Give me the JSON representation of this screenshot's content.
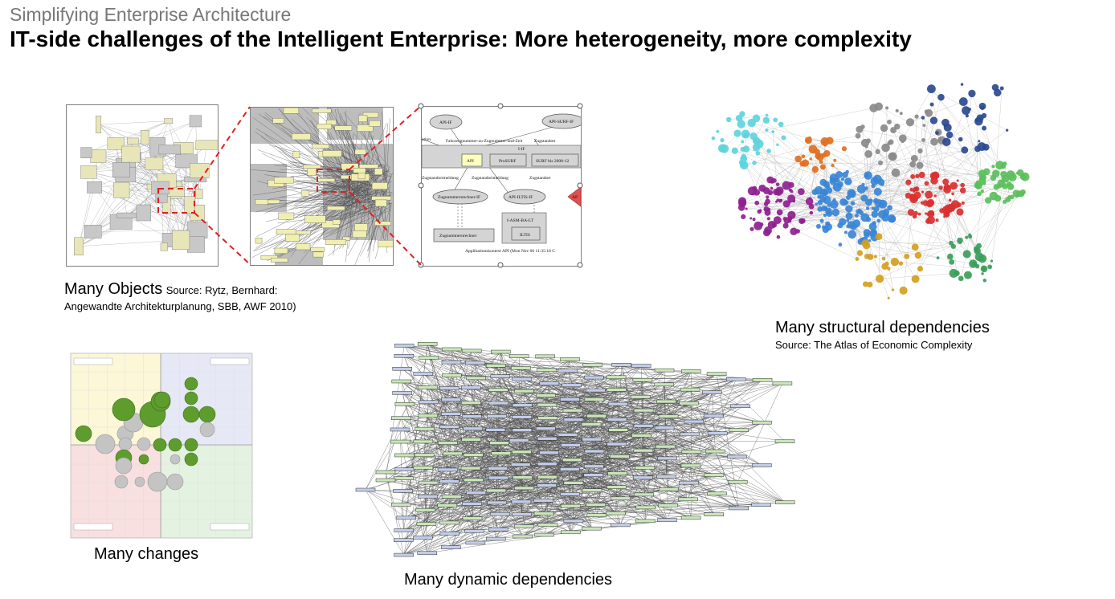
{
  "slide": {
    "subtitle": "Simplifying Enterprise Architecture",
    "title": "IT-side challenges of the Intelligent Enterprise: More heterogeneity, more complexity"
  },
  "objects": {
    "caption": "Many Objects",
    "source_line1": "Source: Rytz, Bernhard:",
    "source_line2": "Angewandte Architekturplanung, SBB, AWF 2010)",
    "zoom_nodes": [
      {
        "label": "API-IF"
      },
      {
        "label": "API-SURF-IF"
      },
      {
        "label": "Fahrzeugnummer-zu-Zugnummer-und-Zeit"
      },
      {
        "label": "Zugstandort"
      },
      {
        "label": "I-IF"
      },
      {
        "label": "API"
      },
      {
        "label": "ProSURF"
      },
      {
        "label": "SURF bis 2008-12"
      },
      {
        "label": "Zugstandortmeldung"
      },
      {
        "label": "Zugstandortmeldung"
      },
      {
        "label": "Zugstandort"
      },
      {
        "label": "Zugnummernrechner-IF"
      },
      {
        "label": "API-ILTIS-IF"
      },
      {
        "label": "I-ASM-BA-LT"
      },
      {
        "label": "Zugnummernrechner"
      },
      {
        "label": "ILTIS"
      },
      {
        "label": "Applikationskontext API (Mon Nov 06 11:35:18 C"
      },
      {
        "label": "AP"
      },
      {
        "label": "ation"
      }
    ]
  },
  "structural": {
    "caption": "Many structural dependencies",
    "source": "Source: The Atlas of Economic Complexity",
    "cluster_colors": [
      "#8e1f8f",
      "#3a86d6",
      "#d93030",
      "#5bbf5b",
      "#5fd4dc",
      "#e07020",
      "#8a8a8a"
    ]
  },
  "changes": {
    "caption": "Many changes",
    "quadrant_colors": {
      "top_left": "#fbf7d7",
      "top_right": "#e6e8f6",
      "bottom_left": "#f8dfe0",
      "bottom_right": "#e4f2e1"
    },
    "bubble_colors": {
      "green": "#5e9c2e",
      "gray": "#c4c4c4"
    }
  },
  "dynamic": {
    "caption": "Many dynamic dependencies",
    "node_colors": {
      "green": "#c9e6b9",
      "blue": "#c3cde8"
    }
  }
}
